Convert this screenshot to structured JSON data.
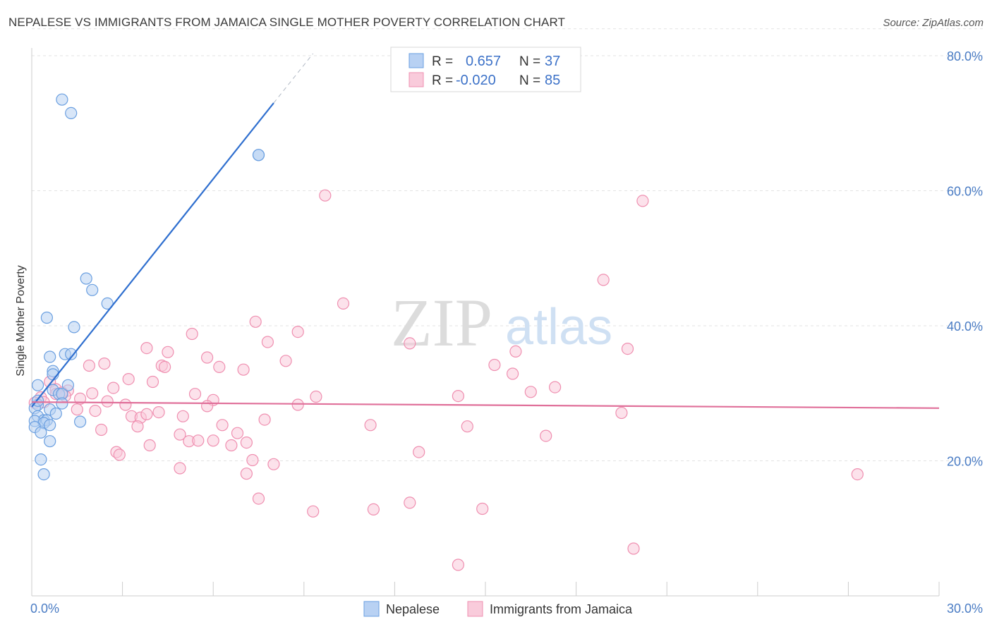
{
  "title": "NEPALESE VS IMMIGRANTS FROM JAMAICA SINGLE MOTHER POVERTY CORRELATION CHART",
  "source": "Source: ZipAtlas.com",
  "watermark": {
    "zip": "ZIP",
    "atlas": "atlas"
  },
  "chart_data": {
    "type": "scatter",
    "title": "NEPALESE VS IMMIGRANTS FROM JAMAICA SINGLE MOTHER POVERTY CORRELATION CHART",
    "xlabel": "",
    "ylabel": "Single Mother Poverty",
    "xlim": [
      0,
      30
    ],
    "ylim": [
      0,
      84
    ],
    "x_tick_labels": [
      "0.0%",
      "30.0%"
    ],
    "y_ticks": [
      20,
      40,
      60,
      80
    ],
    "y_tick_labels": [
      "20.0%",
      "40.0%",
      "60.0%",
      "80.0%"
    ],
    "grid": true,
    "legend_position": "bottom",
    "stats_box_position": "top-center",
    "series": [
      {
        "name": "Nepalese",
        "color": "#6a9fe0",
        "fill": "#b8d1f3",
        "r_label": "R =",
        "r_value": "0.657",
        "n_label": "N =",
        "n_value": "37",
        "trend": {
          "x0": 0.0,
          "y0": 28.0,
          "x1": 8.0,
          "y1": 73.0,
          "dashed_to_x": 9.3,
          "color": "#2f6fcf"
        },
        "points": [
          [
            1.0,
            73.5
          ],
          [
            1.3,
            71.5
          ],
          [
            7.5,
            65.3
          ],
          [
            7.5,
            65.3
          ],
          [
            1.8,
            47.0
          ],
          [
            2.0,
            45.3
          ],
          [
            2.5,
            43.3
          ],
          [
            0.5,
            41.2
          ],
          [
            1.4,
            39.8
          ],
          [
            1.1,
            35.8
          ],
          [
            1.3,
            35.8
          ],
          [
            0.6,
            35.4
          ],
          [
            0.7,
            33.3
          ],
          [
            0.7,
            32.8
          ],
          [
            0.2,
            31.2
          ],
          [
            1.2,
            31.2
          ],
          [
            0.7,
            30.5
          ],
          [
            0.9,
            29.9
          ],
          [
            1.0,
            29.9
          ],
          [
            1.0,
            28.5
          ],
          [
            0.2,
            28.3
          ],
          [
            0.1,
            27.8
          ],
          [
            0.6,
            27.6
          ],
          [
            0.8,
            27.0
          ],
          [
            0.2,
            26.6
          ],
          [
            0.4,
            26.0
          ],
          [
            0.5,
            26.0
          ],
          [
            0.1,
            25.9
          ],
          [
            1.6,
            25.8
          ],
          [
            0.4,
            25.6
          ],
          [
            0.6,
            25.3
          ],
          [
            0.1,
            25.0
          ],
          [
            0.3,
            24.2
          ],
          [
            0.6,
            22.9
          ],
          [
            0.3,
            20.2
          ],
          [
            0.4,
            18.0
          ],
          [
            0.2,
            28.9
          ]
        ]
      },
      {
        "name": "Immigrants from Jamaica",
        "color": "#ef8fb0",
        "fill": "#f9cbdb",
        "r_label": "R =",
        "r_value": "-0.020",
        "n_label": "N =",
        "n_value": "85",
        "trend": {
          "x0": 0.0,
          "y0": 28.7,
          "x1": 30.0,
          "y1": 27.8,
          "color": "#e0709a"
        },
        "points": [
          [
            9.7,
            59.3
          ],
          [
            20.2,
            58.5
          ],
          [
            18.9,
            46.8
          ],
          [
            10.3,
            43.3
          ],
          [
            7.4,
            40.6
          ],
          [
            5.3,
            38.8
          ],
          [
            8.8,
            39.1
          ],
          [
            7.8,
            37.6
          ],
          [
            12.5,
            37.4
          ],
          [
            3.8,
            36.7
          ],
          [
            4.5,
            36.1
          ],
          [
            16.0,
            36.2
          ],
          [
            19.7,
            36.6
          ],
          [
            5.8,
            35.3
          ],
          [
            8.4,
            34.8
          ],
          [
            2.4,
            34.4
          ],
          [
            1.9,
            34.1
          ],
          [
            4.3,
            34.1
          ],
          [
            4.4,
            33.9
          ],
          [
            6.2,
            33.9
          ],
          [
            15.3,
            34.2
          ],
          [
            7.0,
            33.5
          ],
          [
            15.9,
            32.9
          ],
          [
            3.2,
            32.1
          ],
          [
            4.0,
            31.7
          ],
          [
            0.6,
            31.7
          ],
          [
            0.8,
            30.6
          ],
          [
            2.7,
            30.8
          ],
          [
            17.3,
            30.9
          ],
          [
            16.5,
            30.2
          ],
          [
            1.2,
            30.4
          ],
          [
            2.0,
            30.0
          ],
          [
            5.4,
            29.9
          ],
          [
            0.8,
            29.9
          ],
          [
            1.1,
            29.6
          ],
          [
            0.3,
            29.4
          ],
          [
            9.4,
            29.5
          ],
          [
            14.1,
            29.6
          ],
          [
            1.6,
            29.2
          ],
          [
            2.5,
            28.8
          ],
          [
            6.0,
            29.0
          ],
          [
            0.4,
            28.7
          ],
          [
            0.1,
            28.6
          ],
          [
            3.1,
            28.3
          ],
          [
            5.8,
            28.1
          ],
          [
            8.8,
            28.3
          ],
          [
            2.1,
            27.4
          ],
          [
            4.2,
            27.2
          ],
          [
            1.5,
            27.6
          ],
          [
            19.5,
            27.1
          ],
          [
            3.3,
            26.6
          ],
          [
            3.6,
            26.4
          ],
          [
            5.0,
            26.6
          ],
          [
            7.7,
            26.1
          ],
          [
            2.3,
            24.6
          ],
          [
            3.5,
            25.1
          ],
          [
            6.3,
            25.3
          ],
          [
            11.2,
            25.3
          ],
          [
            14.4,
            25.1
          ],
          [
            6.8,
            24.1
          ],
          [
            4.9,
            23.9
          ],
          [
            17.0,
            23.7
          ],
          [
            6.0,
            23.0
          ],
          [
            5.2,
            22.9
          ],
          [
            5.5,
            23.0
          ],
          [
            6.6,
            22.3
          ],
          [
            7.1,
            22.7
          ],
          [
            3.9,
            22.3
          ],
          [
            2.8,
            21.3
          ],
          [
            2.9,
            20.9
          ],
          [
            12.8,
            21.3
          ],
          [
            7.3,
            20.1
          ],
          [
            8.0,
            19.5
          ],
          [
            4.9,
            18.9
          ],
          [
            7.1,
            18.1
          ],
          [
            27.3,
            18.0
          ],
          [
            7.5,
            14.4
          ],
          [
            9.3,
            12.5
          ],
          [
            11.3,
            12.8
          ],
          [
            12.5,
            13.8
          ],
          [
            14.9,
            12.9
          ],
          [
            19.9,
            7.0
          ],
          [
            14.1,
            4.6
          ],
          [
            1.0,
            30.1
          ],
          [
            3.8,
            26.9
          ]
        ]
      }
    ]
  }
}
